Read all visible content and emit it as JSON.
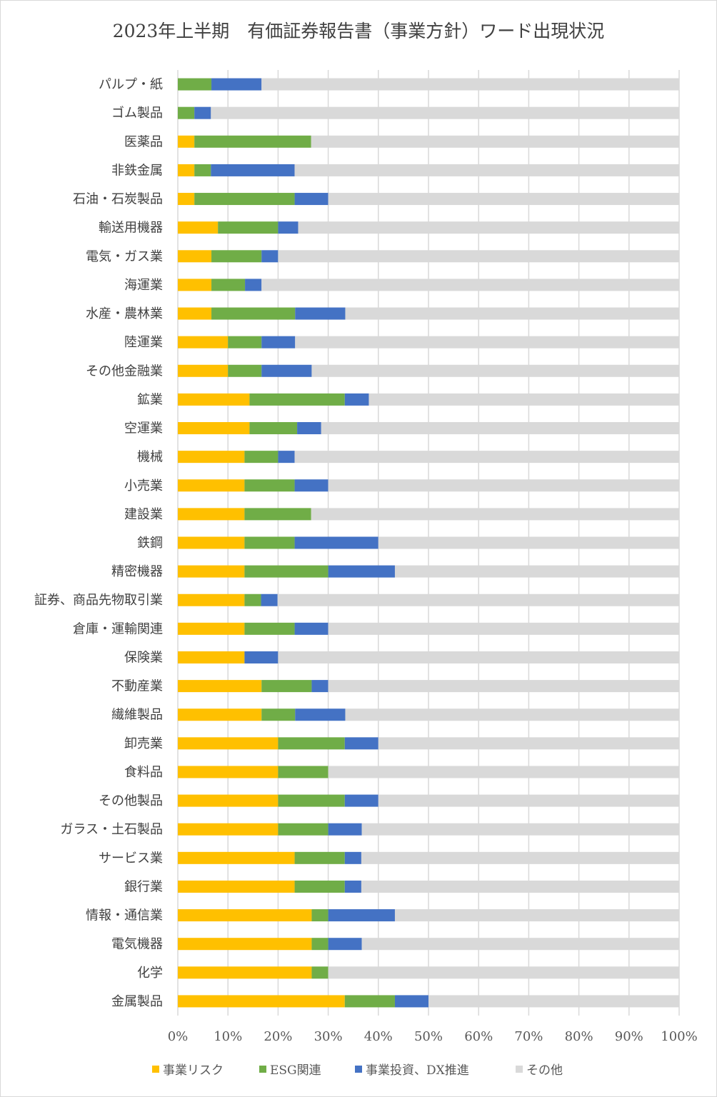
{
  "chart_data": {
    "type": "bar",
    "orientation": "horizontal",
    "stacked": "percent",
    "title": "2023年上半期　有価証券報告書（事業方針）ワード出現状況",
    "categories": [
      "パルプ・紙",
      "ゴム製品",
      "医薬品",
      "非鉄金属",
      "石油・石炭製品",
      "輸送用機器",
      "電気・ガス業",
      "海運業",
      "水産・農林業",
      "陸運業",
      "その他金融業",
      "鉱業",
      "空運業",
      "機械",
      "小売業",
      "建設業",
      "鉄鋼",
      "精密機器",
      "証券、商品先物取引業",
      "倉庫・運輸関連",
      "保険業",
      "不動産業",
      "繊維製品",
      "卸売業",
      "食料品",
      "その他製品",
      "ガラス・土石製品",
      "サービス業",
      "銀行業",
      "情報・通信業",
      "電気機器",
      "化学",
      "金属製品"
    ],
    "series": [
      {
        "name": "事業リスク",
        "color": "#FFC000",
        "values": [
          0,
          0,
          3.3,
          3.3,
          3.3,
          8,
          6.7,
          6.7,
          6.7,
          10,
          10,
          14.3,
          14.3,
          13.3,
          13.3,
          13.3,
          13.3,
          13.3,
          13.3,
          13.3,
          13.3,
          16.7,
          16.7,
          20,
          20,
          20,
          20,
          23.3,
          23.3,
          26.7,
          26.7,
          26.7,
          33.3
        ]
      },
      {
        "name": "ESG関連",
        "color": "#70AD47",
        "values": [
          6.7,
          3.3,
          23.3,
          3.3,
          20,
          12,
          10,
          6.7,
          16.7,
          6.7,
          6.7,
          19,
          9.5,
          6.7,
          10,
          13.3,
          10,
          16.7,
          3.3,
          10,
          0,
          10,
          6.7,
          13.3,
          10,
          13.3,
          10,
          10,
          10,
          3.3,
          3.3,
          3.3,
          10
        ]
      },
      {
        "name": "事業投資、DX推進",
        "color": "#4472C4",
        "values": [
          10,
          3.3,
          0,
          16.7,
          6.7,
          4,
          3.3,
          3.3,
          10,
          6.7,
          10,
          4.8,
          4.8,
          3.3,
          6.7,
          0,
          16.7,
          13.3,
          3.3,
          6.7,
          6.7,
          3.3,
          10,
          6.7,
          0,
          6.7,
          6.7,
          3.3,
          3.3,
          13.3,
          6.7,
          0,
          6.7
        ]
      },
      {
        "name": "その他",
        "color": "#D9D9D9",
        "values": [
          83.3,
          93.4,
          73.4,
          76.7,
          70,
          76,
          80,
          83.3,
          66.6,
          76.6,
          73.3,
          61.9,
          71.4,
          76.7,
          70,
          73.4,
          60,
          56.7,
          80.1,
          70,
          80,
          70,
          66.6,
          60,
          70,
          60,
          63.3,
          63.4,
          63.4,
          56.7,
          63.3,
          70,
          50
        ]
      }
    ],
    "xlim": [
      0,
      100
    ],
    "xticks": [
      "0%",
      "10%",
      "20%",
      "30%",
      "40%",
      "50%",
      "60%",
      "70%",
      "80%",
      "90%",
      "100%"
    ],
    "grid": true,
    "legend": "bottom"
  }
}
